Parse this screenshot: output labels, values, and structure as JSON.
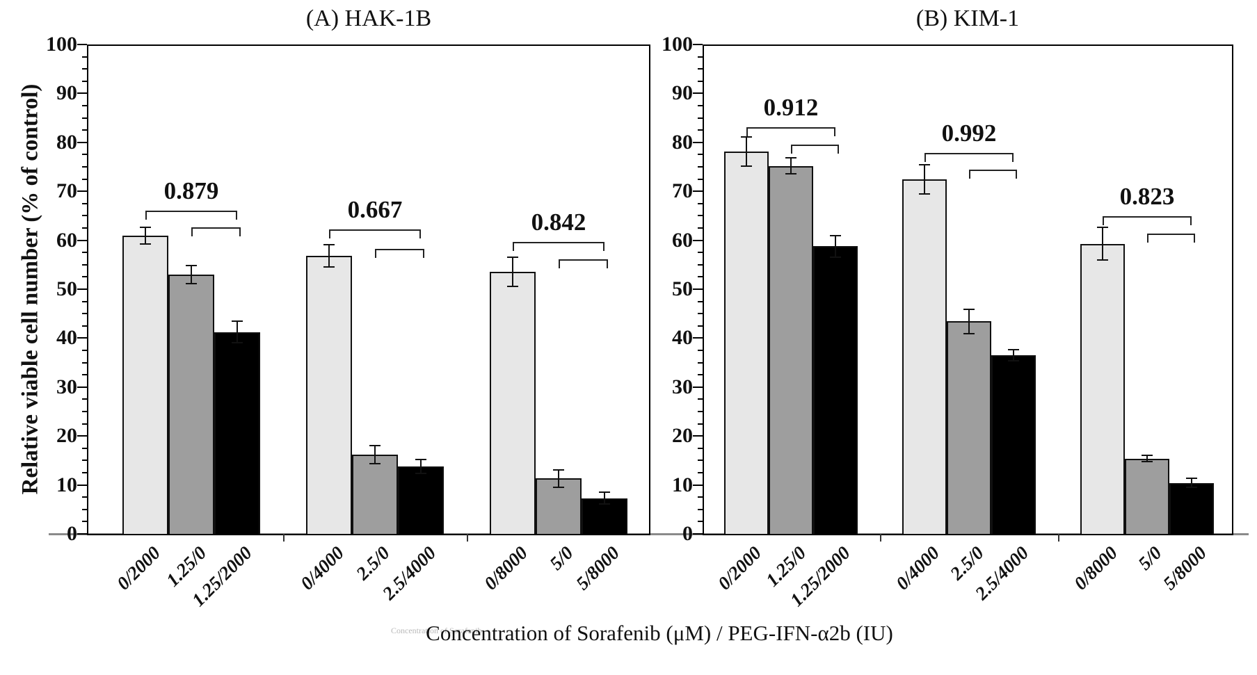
{
  "figure": {
    "y_axis_label": "Relative viable cell number (% of control)",
    "x_axis_label": "Concentration of Sorafenib (μM) / PEG-IFN-α2b (IU)",
    "watermark": "Concentration of Sorafenib"
  },
  "chart_data": [
    {
      "type": "bar",
      "title": "(A) HAK-1B",
      "ylabel": "Relative viable cell number (% of control)",
      "xlabel": "Concentration of Sorafenib (μM) / PEG-IFN-α2b (IU)",
      "ylim": [
        0,
        100
      ],
      "ytick_step": 10,
      "yminor_step": 2.5,
      "grid": false,
      "legend": "none",
      "categories": [
        "0/2000",
        "1.25/0",
        "1.25/2000",
        "0/4000",
        "2.5/0",
        "2.5/4000",
        "0/8000",
        "5/0",
        "5/8000"
      ],
      "groups": [
        {
          "p_value": "0.879",
          "bracket_levels": [
            66.1,
            62.6
          ],
          "bars": [
            {
              "category": "0/2000",
              "value": 61.0,
              "error": 1.7,
              "fill": "#e7e7e7"
            },
            {
              "category": "1.25/0",
              "value": 53.0,
              "error": 1.8,
              "fill": "#9e9e9e"
            },
            {
              "category": "1.25/2000",
              "value": 41.2,
              "error": 2.2,
              "fill": "#000000"
            }
          ]
        },
        {
          "p_value": "0.667",
          "bracket_levels": [
            62.2,
            58.3
          ],
          "bars": [
            {
              "category": "0/4000",
              "value": 56.8,
              "error": 2.3,
              "fill": "#e7e7e7"
            },
            {
              "category": "2.5/0",
              "value": 16.2,
              "error": 1.9,
              "fill": "#9e9e9e"
            },
            {
              "category": "2.5/4000",
              "value": 13.8,
              "error": 1.4,
              "fill": "#000000"
            }
          ]
        },
        {
          "p_value": "0.842",
          "bracket_levels": [
            59.7,
            56.1
          ],
          "bars": [
            {
              "category": "0/8000",
              "value": 53.5,
              "error": 3.0,
              "fill": "#e7e7e7"
            },
            {
              "category": "5/0",
              "value": 11.3,
              "error": 1.8,
              "fill": "#9e9e9e"
            },
            {
              "category": "5/8000",
              "value": 7.3,
              "error": 1.2,
              "fill": "#000000"
            }
          ]
        }
      ]
    },
    {
      "type": "bar",
      "title": "(B) KIM-1",
      "ylabel": "Relative viable cell number (% of control)",
      "xlabel": "Concentration of Sorafenib (μM) / PEG-IFN-α2b (IU)",
      "ylim": [
        0,
        100
      ],
      "ytick_step": 10,
      "yminor_step": 2.5,
      "grid": false,
      "legend": "none",
      "categories": [
        "0/2000",
        "1.25/0",
        "1.25/2000",
        "0/4000",
        "2.5/0",
        "2.5/4000",
        "0/8000",
        "5/0",
        "5/8000"
      ],
      "groups": [
        {
          "p_value": "0.912",
          "bracket_levels": [
            83.1,
            79.6
          ],
          "bars": [
            {
              "category": "0/2000",
              "value": 78.1,
              "error": 3.0,
              "fill": "#e7e7e7"
            },
            {
              "category": "1.25/0",
              "value": 75.2,
              "error": 1.6,
              "fill": "#9e9e9e"
            },
            {
              "category": "1.25/2000",
              "value": 58.8,
              "error": 2.2,
              "fill": "#000000"
            }
          ]
        },
        {
          "p_value": "0.992",
          "bracket_levels": [
            77.9,
            74.4
          ],
          "bars": [
            {
              "category": "0/4000",
              "value": 72.4,
              "error": 3.0,
              "fill": "#e7e7e7"
            },
            {
              "category": "2.5/0",
              "value": 43.4,
              "error": 2.5,
              "fill": "#9e9e9e"
            },
            {
              "category": "2.5/4000",
              "value": 36.5,
              "error": 1.2,
              "fill": "#000000"
            }
          ]
        },
        {
          "p_value": "0.823",
          "bracket_levels": [
            64.9,
            61.3
          ],
          "bars": [
            {
              "category": "0/8000",
              "value": 59.3,
              "error": 3.3,
              "fill": "#e7e7e7"
            },
            {
              "category": "5/0",
              "value": 15.4,
              "error": 0.6,
              "fill": "#9e9e9e"
            },
            {
              "category": "5/8000",
              "value": 10.4,
              "error": 0.9,
              "fill": "#000000"
            }
          ]
        }
      ]
    }
  ]
}
